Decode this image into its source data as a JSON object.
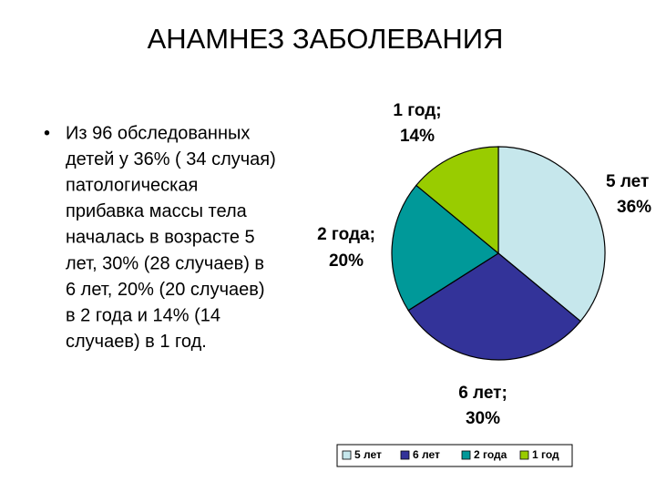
{
  "title": "АНАМНЕЗ ЗАБОЛЕВАНИЯ",
  "bullet_lines": [
    "Из 96 обследованных",
    "детей у 36% ( 34 случая)",
    "патологическая",
    "прибавка массы тела",
    "началась в возрасте 5",
    "лет, 30% (28 случаев) в",
    "6 лет,  20% (20 случаев)",
    "в 2 года и 14% (14",
    "случаев) в 1 год."
  ],
  "chart_data": {
    "type": "pie",
    "categories": [
      "5 лет",
      "6 лет",
      "2 года",
      "1 год"
    ],
    "values": [
      36,
      30,
      20,
      14
    ],
    "value_labels": [
      "36%",
      "30%",
      "20%",
      "14%"
    ],
    "data_label_names": [
      "5 лет",
      "6 лет;",
      "2 года;",
      "1 год;"
    ],
    "colors": [
      "#c6e7ec",
      "#333399",
      "#009999",
      "#99cc00"
    ],
    "legend": "bottom"
  }
}
